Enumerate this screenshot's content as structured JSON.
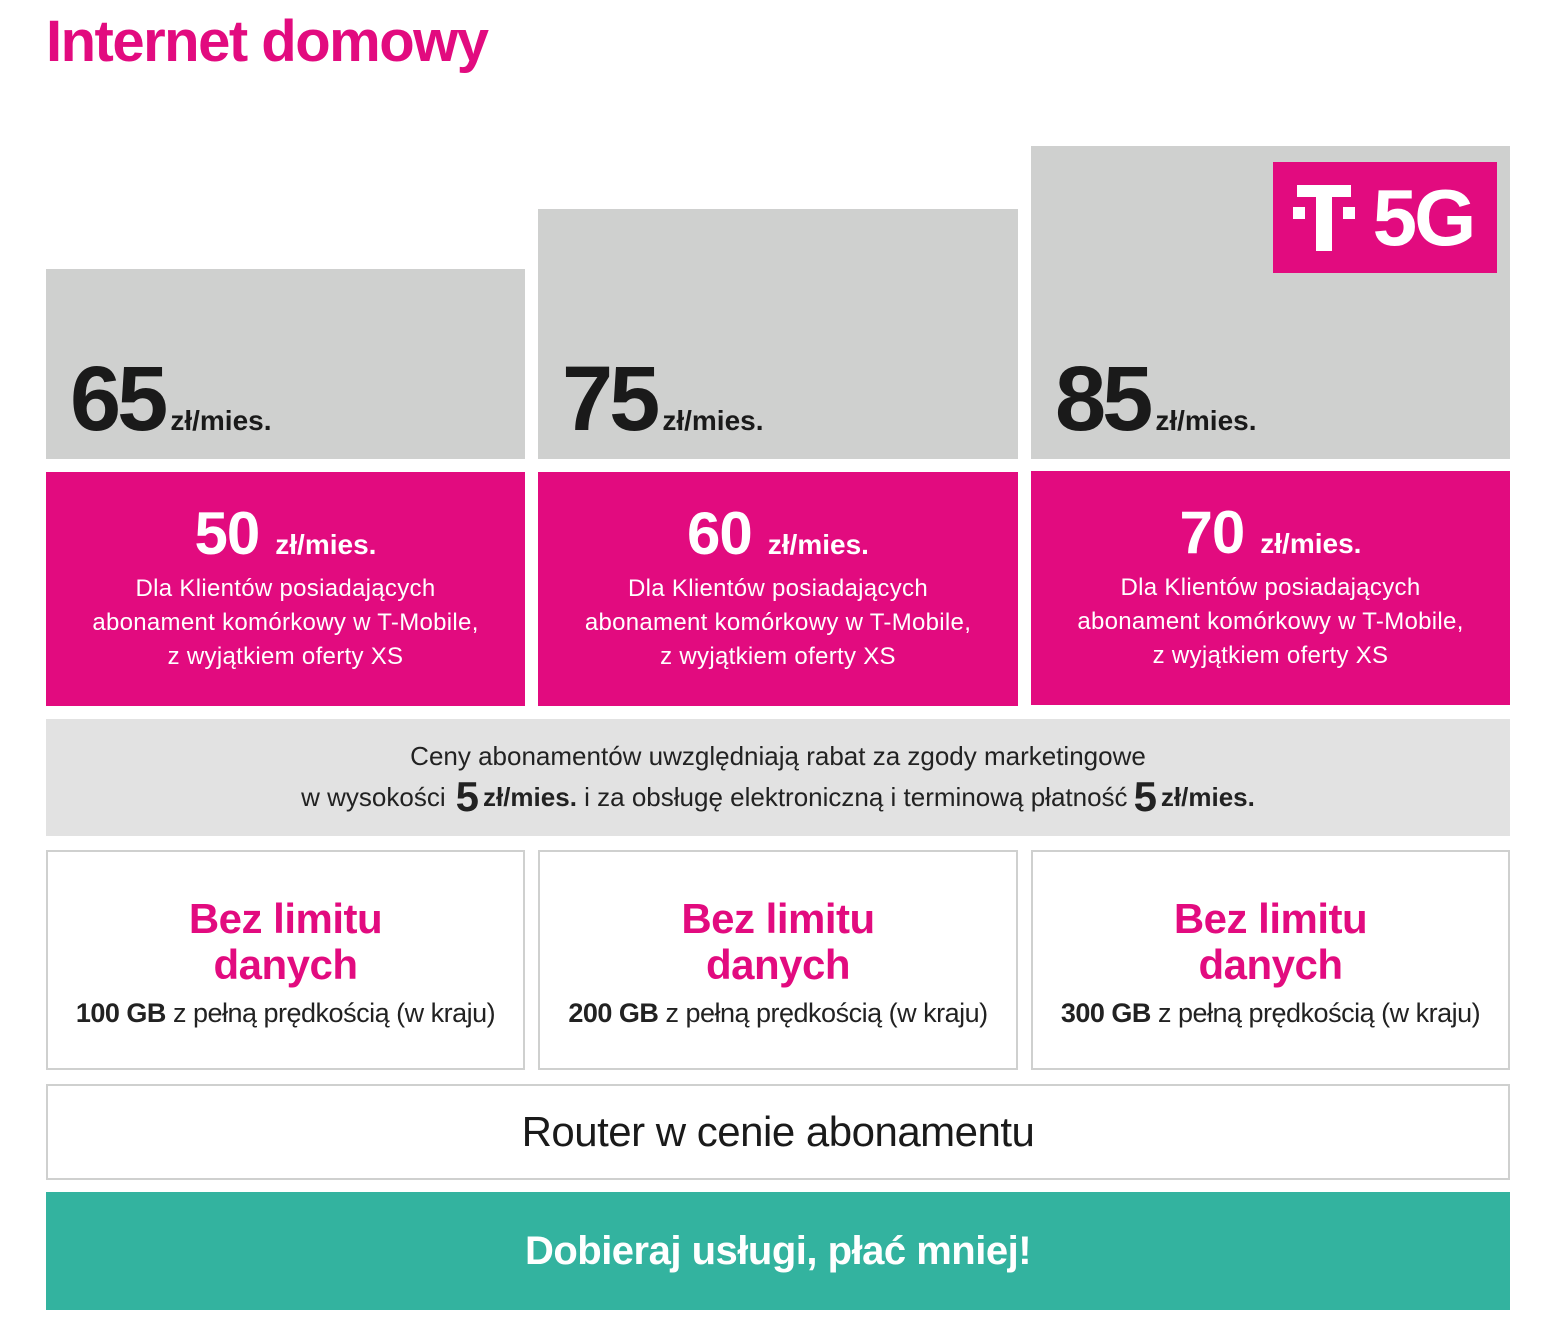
{
  "title": "Internet domowy",
  "badge": {
    "text": "5G",
    "logo": "T"
  },
  "plans": [
    {
      "regular_price": "65",
      "regular_unit": "zł/mies.",
      "promo_price": "50",
      "promo_unit": "zł/mies.",
      "promo_desc": [
        "Dla Klientów posiadających",
        "abonament komórkowy w T-Mobile,",
        "z wyjątkiem oferty XS"
      ],
      "data_headline": [
        "Bez limitu",
        "danych"
      ],
      "data_gb": "100 GB",
      "data_note": "z pełną prędkością (w kraju)"
    },
    {
      "regular_price": "75",
      "regular_unit": "zł/mies.",
      "promo_price": "60",
      "promo_unit": "zł/mies.",
      "promo_desc": [
        "Dla Klientów posiadających",
        "abonament komórkowy w T-Mobile,",
        "z wyjątkiem oferty XS"
      ],
      "data_headline": [
        "Bez limitu",
        "danych"
      ],
      "data_gb": "200 GB",
      "data_note": "z pełną prędkością (w kraju)"
    },
    {
      "regular_price": "85",
      "regular_unit": "zł/mies.",
      "promo_price": "70",
      "promo_unit": "zł/mies.",
      "promo_desc": [
        "Dla Klientów posiadających",
        "abonament komórkowy w T-Mobile,",
        "z wyjątkiem oferty XS"
      ],
      "data_headline": [
        "Bez limitu",
        "danych"
      ],
      "data_gb": "300 GB",
      "data_note": "z pełną prędkością (w kraju)"
    }
  ],
  "discount_info": {
    "line1": "Ceny abonamentów uwzględniają rabat za zgody marketingowe",
    "line2_prefix": "w wysokości",
    "amount1": "5",
    "unit1": "zł/mies.",
    "line2_middle": "i za obsługę elektroniczną i terminową płatność",
    "amount2": "5",
    "unit2": "zł/mies."
  },
  "router": "Router w cenie abonamentu",
  "cta": "Dobieraj usługi, płać mniej!",
  "colors": {
    "magenta": "#e20b7f",
    "gray": "#cfd0cf",
    "light_gray": "#e2e2e2",
    "teal": "#33b39f"
  }
}
